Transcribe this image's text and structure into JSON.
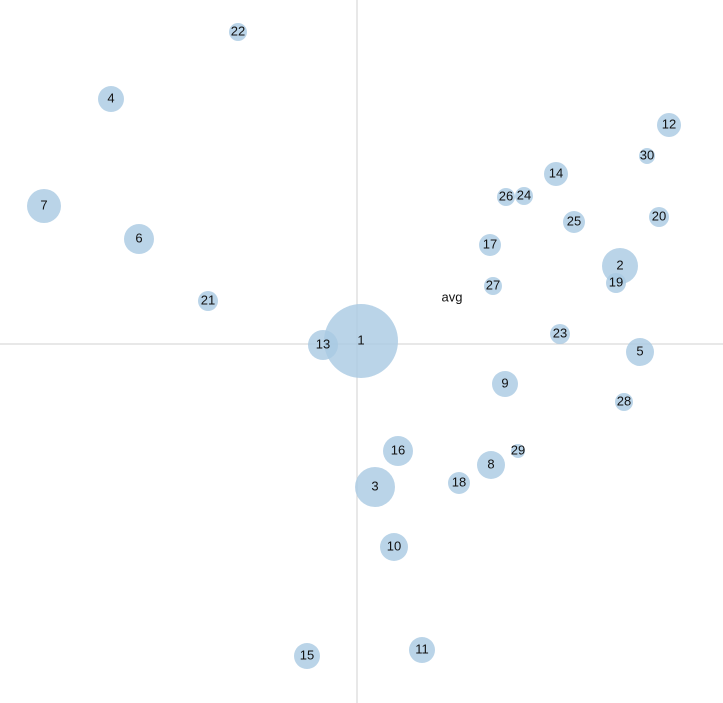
{
  "chart_data": {
    "type": "bubble",
    "color": "#a9c9e2",
    "xlim": [
      -357,
      366
    ],
    "ylim": [
      -359,
      344
    ],
    "labels": [
      "1",
      "2",
      "3",
      "4",
      "5",
      "6",
      "7",
      "8",
      "9",
      "10",
      "11",
      "12",
      "13",
      "14",
      "15",
      "16",
      "17",
      "18",
      "19",
      "20",
      "21",
      "22",
      "23",
      "24",
      "25",
      "26",
      "27",
      "28",
      "29",
      "30"
    ],
    "x": [
      4,
      263,
      18,
      -246,
      283,
      -218,
      -313,
      134,
      148,
      37,
      65,
      312,
      -34,
      199,
      -50,
      41,
      133,
      102,
      259,
      302,
      -149,
      -119,
      203,
      167,
      217,
      149,
      136,
      267,
      161,
      290
    ],
    "y": [
      3,
      78,
      -143,
      245,
      -8,
      105,
      138,
      -121,
      -40,
      -203,
      -306,
      219,
      -1,
      170,
      -312,
      -107,
      99,
      -139,
      61,
      127,
      43,
      312,
      10,
      148,
      122,
      147,
      58,
      -58,
      -107,
      188
    ],
    "sizes": [
      37,
      18,
      20,
      13,
      14,
      15,
      17,
      14,
      13,
      14,
      13,
      12,
      15,
      12,
      13,
      15,
      11,
      11,
      10,
      10,
      10,
      9,
      10,
      9,
      11,
      9,
      9,
      9,
      7,
      8
    ],
    "annotation": {
      "text": "avg",
      "x": 95,
      "y": 46
    }
  }
}
